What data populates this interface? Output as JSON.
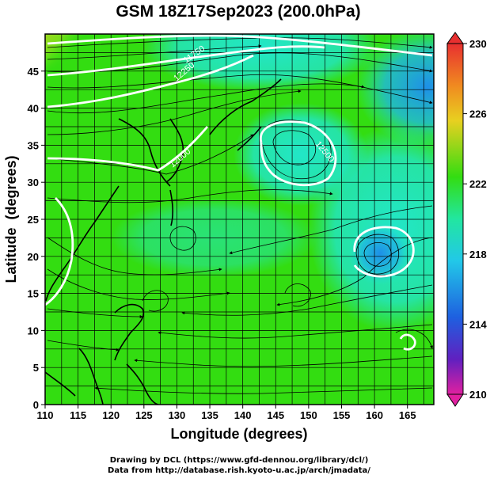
{
  "title": "GSM 18Z17Sep2023 (200.0hPa)",
  "x_axis_label": "Longitude (degrees)",
  "y_axis_label": "Latitude  (degrees)",
  "x_ticks": [
    "110",
    "115",
    "120",
    "125",
    "130",
    "135",
    "140",
    "145",
    "150",
    "155",
    "160",
    "165"
  ],
  "y_ticks": [
    "0",
    "5",
    "10",
    "15",
    "20",
    "25",
    "30",
    "35",
    "40",
    "45"
  ],
  "colorbar_ticks": [
    "230",
    "226",
    "222",
    "218",
    "214",
    "210"
  ],
  "contour_labels": [
    "12500",
    "12250",
    "12000",
    "11750"
  ],
  "credits": {
    "line1": "Drawing by DCL (https://www.gfd-dennou.org/library/dcl/)",
    "line2": "Data from http://database.rish.kyoto-u.ac.jp/arch/jmadata/"
  },
  "colors": {
    "field_green": "#33dd11",
    "field_cyan": "#22e6c8",
    "field_blue": "#1e8fe8",
    "field_orange": "#f0a020",
    "colorbar_top": "#e83030",
    "colorbar_bottom": "#e020a0",
    "contour": "#ffffff",
    "coastline": "#000000"
  }
}
